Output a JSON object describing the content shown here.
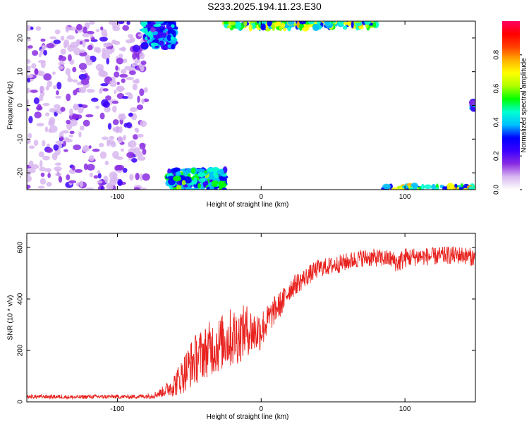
{
  "page": {
    "title": "S233.2025.194.11.23.E30"
  },
  "chart_data": [
    {
      "type": "heatmap",
      "xlabel": "Height of straight line (km)",
      "ylabel": "Frequency (Hz)",
      "xlim": [
        -163,
        149
      ],
      "ylim": [
        -25,
        25
      ],
      "x_ticks": [
        -100,
        0,
        100
      ],
      "y_ticks": [
        -20,
        -10,
        0,
        10,
        20
      ],
      "colorbar": {
        "label": "Normalized spectral amplitude",
        "range": [
          0,
          1
        ],
        "ticks": [
          0.0,
          0.2,
          0.4,
          0.6,
          0.8
        ],
        "colors": [
          "#ffffff",
          "#d8b7f0",
          "#8a2be2",
          "#3a00ff",
          "#0000ff",
          "#00c0ff",
          "#00ffd0",
          "#00ff00",
          "#b0ff00",
          "#ffff00",
          "#ffb000",
          "#ff4000",
          "#ff0000",
          "#ff0060"
        ]
      },
      "regions": [
        {
          "x_range": [
            -163,
            -80
          ],
          "f_range": [
            -25,
            25
          ],
          "amplitude": 0.12,
          "pattern": "broadband speckle"
        },
        {
          "x_range": [
            -82,
            -60
          ],
          "f_range": [
            17,
            25
          ],
          "amplitude": 0.3
        },
        {
          "x_range": [
            -25,
            80
          ],
          "f_range": [
            23,
            25
          ],
          "amplitude": 0.5
        },
        {
          "x_range": [
            -65,
            -25
          ],
          "f_range": [
            -25,
            -19
          ],
          "amplitude": 0.4
        },
        {
          "x_range": [
            85,
            149
          ],
          "f_range": [
            -25,
            -24
          ],
          "amplitude": 0.5
        },
        {
          "x_range": [
            147,
            149
          ],
          "f_range": [
            -1,
            1
          ],
          "amplitude": 0.25
        }
      ]
    },
    {
      "type": "line",
      "xlabel": "Height of straight line (km)",
      "ylabel": "SNR (10 * v/v)",
      "xlim": [
        -163,
        149
      ],
      "ylim": [
        0,
        655
      ],
      "x_ticks": [
        -100,
        0,
        100
      ],
      "y_ticks": [
        0,
        200,
        400,
        600
      ],
      "series": [
        {
          "color": "#e8221e",
          "x": [
            -163,
            -150,
            -140,
            -130,
            -120,
            -110,
            -100,
            -90,
            -80,
            -75,
            -70,
            -65,
            -60,
            -55,
            -50,
            -45,
            -40,
            -35,
            -30,
            -25,
            -20,
            -15,
            -10,
            -5,
            0,
            5,
            10,
            15,
            20,
            25,
            30,
            40,
            50,
            60,
            70,
            80,
            90,
            95,
            100,
            110,
            120,
            130,
            140,
            149
          ],
          "y": [
            20,
            20,
            20,
            18,
            20,
            20,
            20,
            20,
            22,
            25,
            35,
            50,
            70,
            100,
            140,
            170,
            190,
            210,
            220,
            240,
            250,
            260,
            280,
            270,
            280,
            320,
            360,
            390,
            440,
            460,
            480,
            520,
            530,
            545,
            560,
            560,
            555,
            540,
            560,
            565,
            565,
            570,
            570,
            560
          ],
          "noise": [
            8,
            8,
            8,
            8,
            8,
            8,
            8,
            8,
            10,
            12,
            18,
            30,
            50,
            70,
            90,
            100,
            100,
            110,
            110,
            110,
            120,
            110,
            100,
            90,
            80,
            60,
            55,
            50,
            45,
            40,
            38,
            35,
            35,
            35,
            35,
            35,
            35,
            40,
            40,
            35,
            35,
            35,
            35,
            35
          ]
        }
      ]
    }
  ]
}
